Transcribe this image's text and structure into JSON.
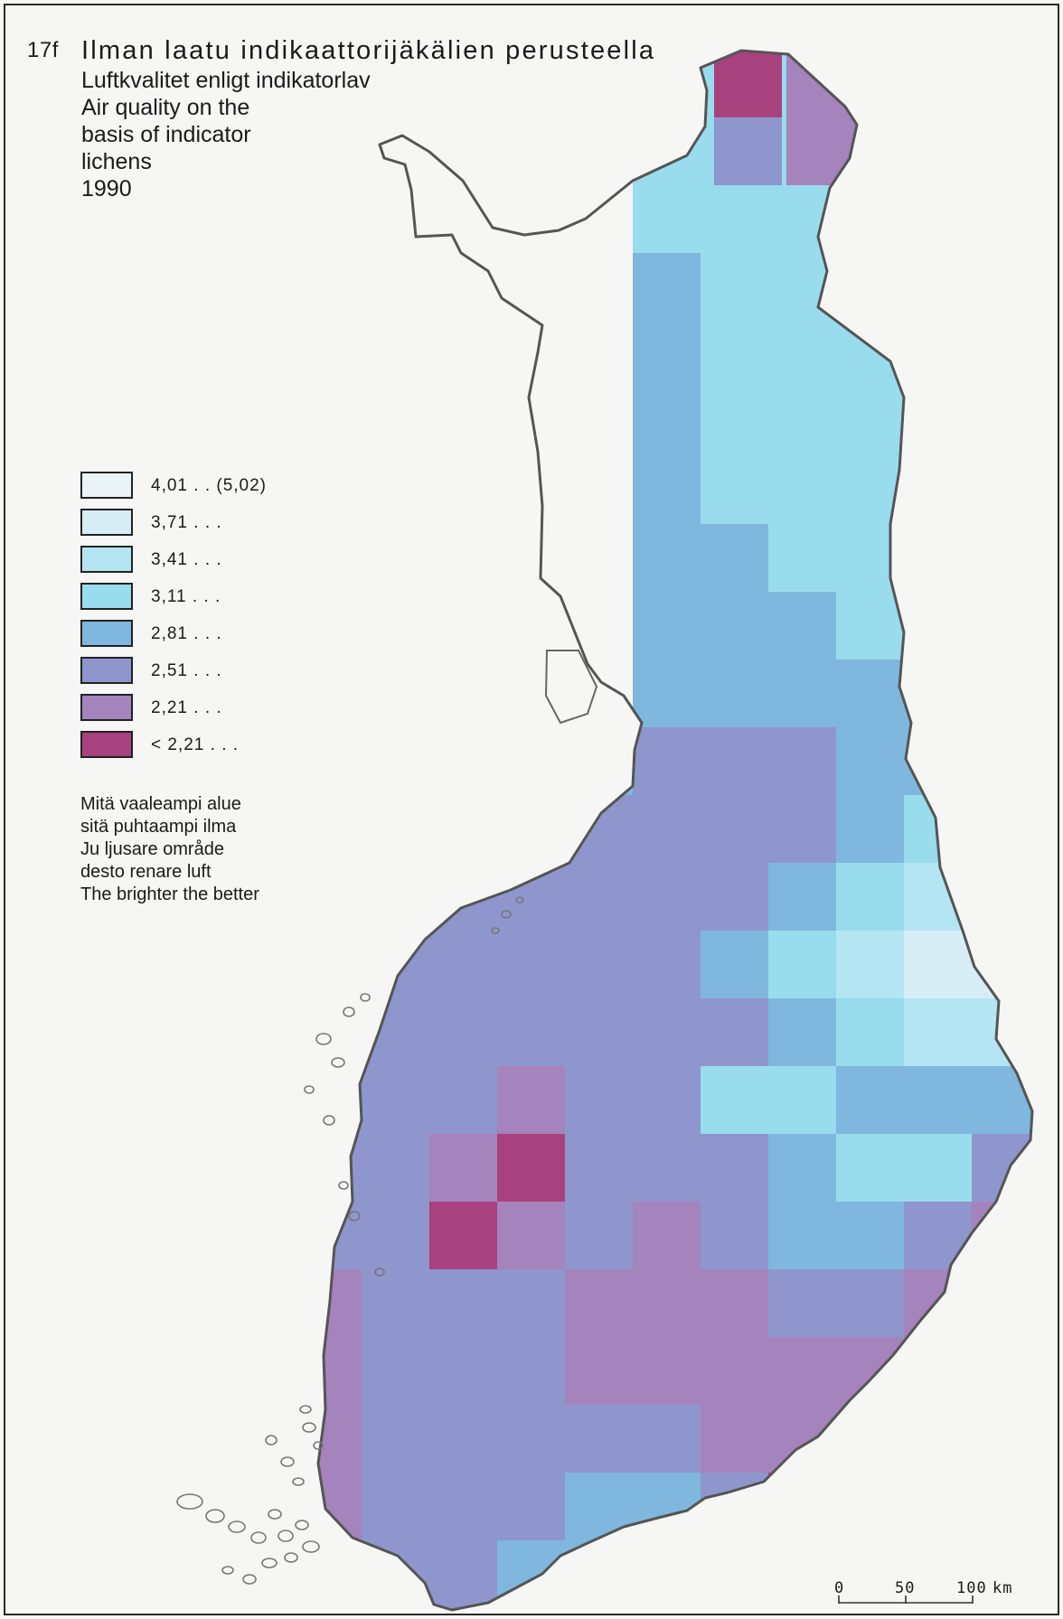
{
  "figure_number": "17f",
  "title_fi": "Ilman laatu indikaattorijäkälien perusteella",
  "title_sv": "Luftkvalitet enligt indikatorlav",
  "title_en_lines": [
    "Air quality on the",
    "basis of indicator",
    "lichens"
  ],
  "year": "1990",
  "legend": [
    {
      "label": "4,01 . . (5,02)",
      "color": "#eaf3f8"
    },
    {
      "label": "3,71 . . .",
      "color": "#d8eef7"
    },
    {
      "label": "3,41 . . .",
      "color": "#b3e6f2"
    },
    {
      "label": "3,11 . . .",
      "color": "#98dcee"
    },
    {
      "label": "2,81 . . .",
      "color": "#7fb7de"
    },
    {
      "label": "2,51 . . .",
      "color": "#8e96cd"
    },
    {
      "label": "2,21 . . .",
      "color": "#a583bd"
    },
    {
      "label": "< 2,21 . . .",
      "color": "#a8427f"
    }
  ],
  "note_lines": [
    "Mitä vaaleampi alue",
    "sitä puhtaampi ilma",
    "Ju ljusare område",
    "desto renare luft",
    "The brighter the better"
  ],
  "scale": {
    "ticks": [
      "0",
      "50",
      "100"
    ],
    "unit": "km"
  },
  "colors": {
    "outline": "#555555",
    "water": "#f6f6f4",
    "frame": "#2a2a2a"
  }
}
